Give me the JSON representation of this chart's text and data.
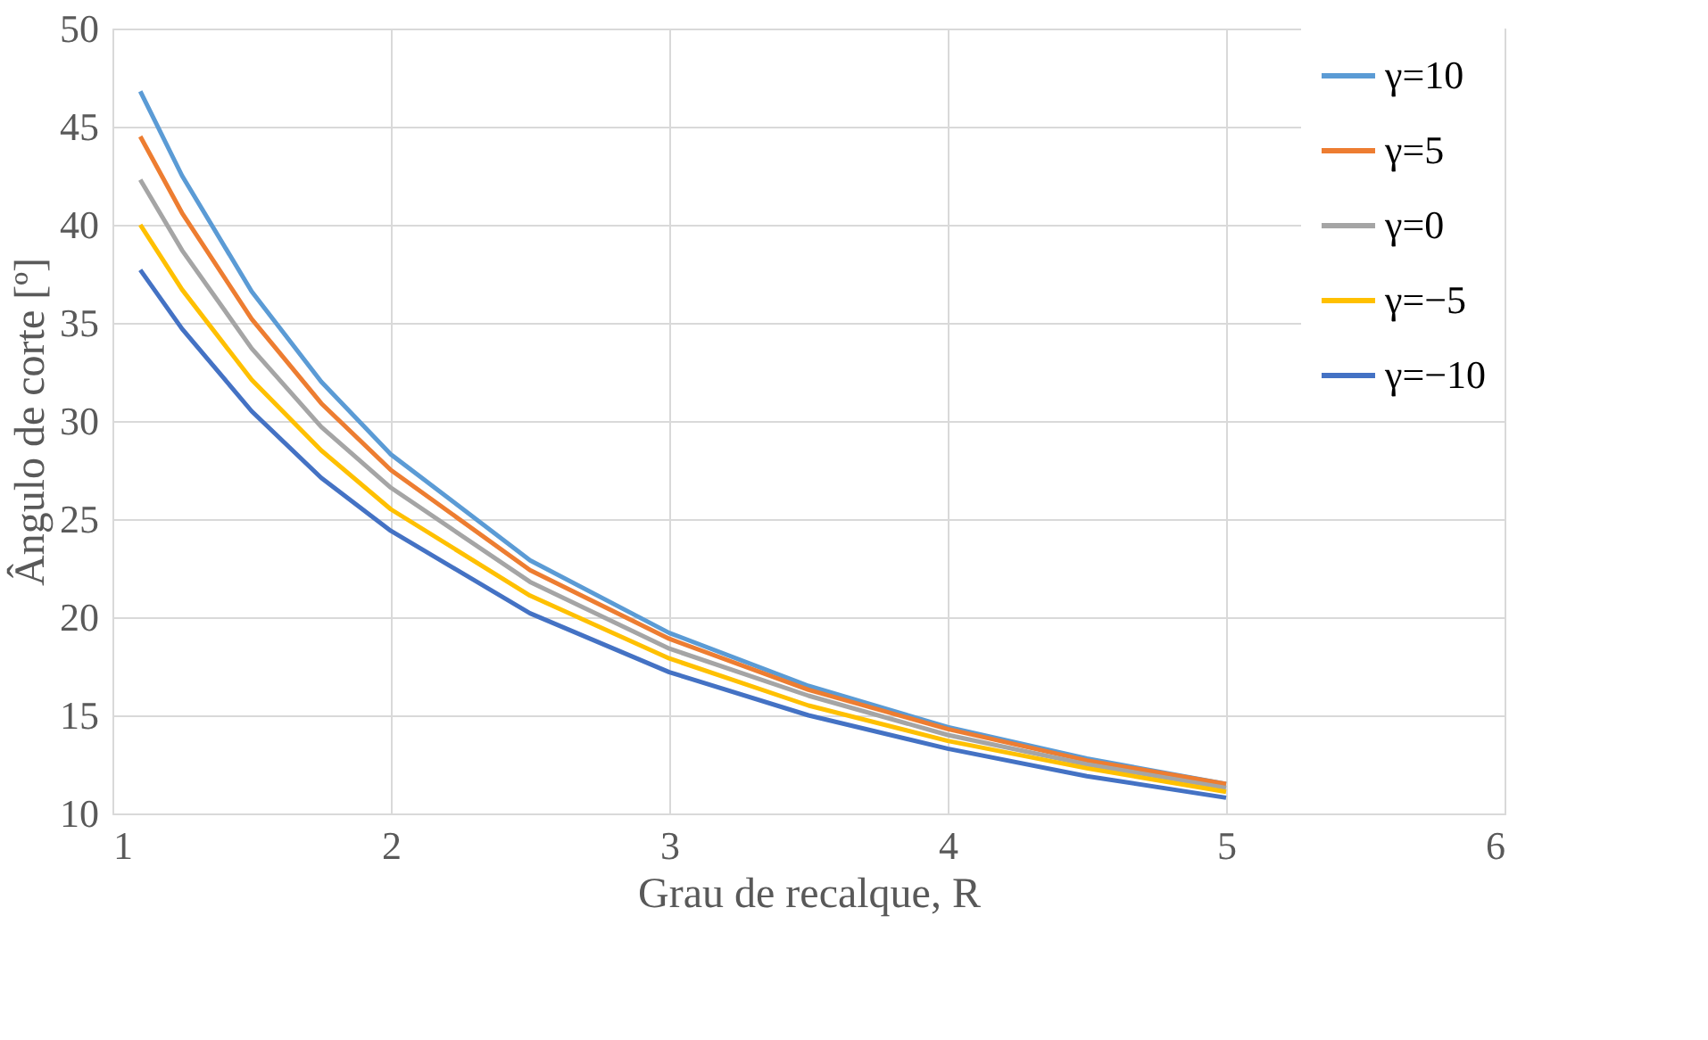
{
  "chart_data": {
    "type": "line",
    "xlabel": "Grau de recalque, R",
    "ylabel": "Ângulo de corte [º]",
    "x": [
      1.1,
      1.25,
      1.5,
      1.75,
      2,
      2.5,
      3,
      3.5,
      4,
      4.5,
      5
    ],
    "series": [
      {
        "name": "γ=10",
        "color": "#5b9bd5",
        "values": [
          46.8,
          42.5,
          36.6,
          32.0,
          28.3,
          22.9,
          19.2,
          16.5,
          14.4,
          12.8,
          11.5
        ]
      },
      {
        "name": "γ=5",
        "color": "#ed7d31",
        "values": [
          44.5,
          40.6,
          35.2,
          30.9,
          27.5,
          22.4,
          18.9,
          16.3,
          14.3,
          12.7,
          11.5
        ]
      },
      {
        "name": "γ=0",
        "color": "#a5a5a5",
        "values": [
          42.3,
          38.7,
          33.7,
          29.7,
          26.6,
          21.8,
          18.4,
          16.0,
          14.0,
          12.5,
          11.3
        ]
      },
      {
        "name": "γ=−5",
        "color": "#ffc000",
        "values": [
          40.0,
          36.7,
          32.1,
          28.5,
          25.5,
          21.1,
          17.9,
          15.5,
          13.7,
          12.3,
          11.1
        ]
      },
      {
        "name": "γ=−10",
        "color": "#4472c4",
        "values": [
          37.7,
          34.7,
          30.5,
          27.1,
          24.4,
          20.2,
          17.2,
          15.0,
          13.3,
          11.9,
          10.8
        ]
      }
    ],
    "xlim": [
      1,
      6
    ],
    "xticks": [
      1,
      2,
      3,
      4,
      5,
      6
    ],
    "ylim": [
      10,
      50
    ],
    "yticks": [
      10,
      15,
      20,
      25,
      30,
      35,
      40,
      45,
      50
    ],
    "grid": true,
    "legend": "top right",
    "marker": "none",
    "line_style": "solid"
  }
}
